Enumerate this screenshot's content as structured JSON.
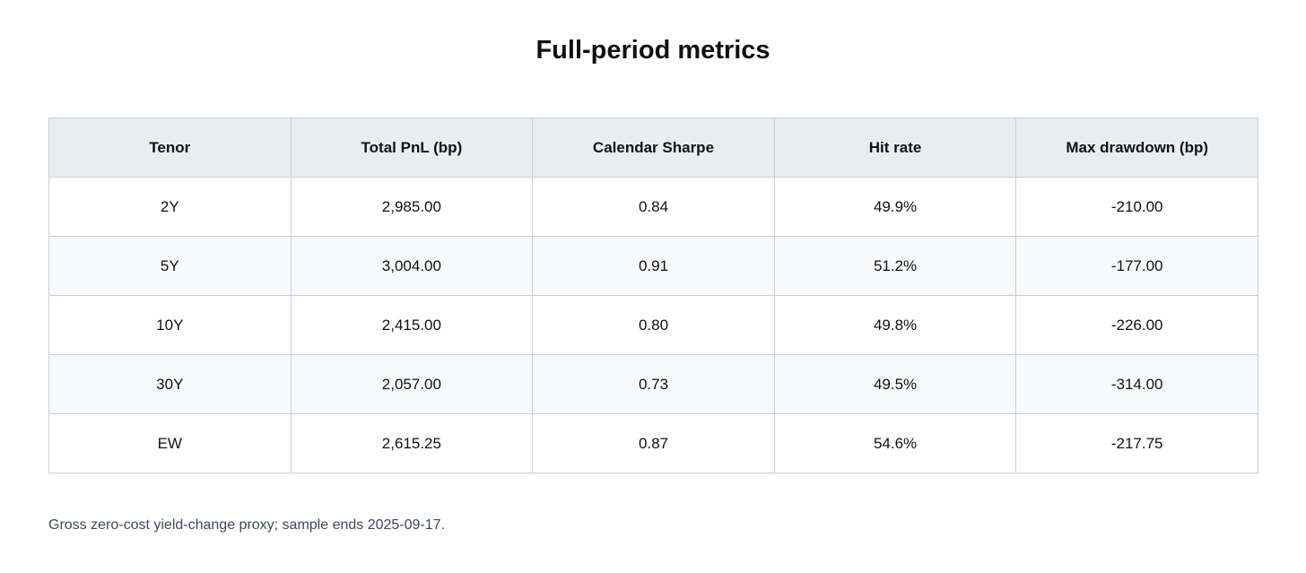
{
  "title": "Full-period metrics",
  "table": {
    "headers": [
      "Tenor",
      "Total PnL (bp)",
      "Calendar Sharpe",
      "Hit rate",
      "Max drawdown (bp)"
    ],
    "rows": [
      [
        "2Y",
        "2,985.00",
        "0.84",
        "49.9%",
        "-210.00"
      ],
      [
        "5Y",
        "3,004.00",
        "0.91",
        "51.2%",
        "-177.00"
      ],
      [
        "10Y",
        "2,415.00",
        "0.80",
        "49.8%",
        "-226.00"
      ],
      [
        "30Y",
        "2,057.00",
        "0.73",
        "49.5%",
        "-314.00"
      ],
      [
        "EW",
        "2,615.25",
        "0.87",
        "54.6%",
        "-217.75"
      ]
    ]
  },
  "footnote": "Gross zero-cost yield-change proxy; sample ends 2025-09-17.",
  "colors": {
    "header_bg": "#e8edf2",
    "alt_row_bg": "#f7f9fb",
    "border": "#c6d0dc",
    "footnote_text": "#3a4a5c"
  }
}
